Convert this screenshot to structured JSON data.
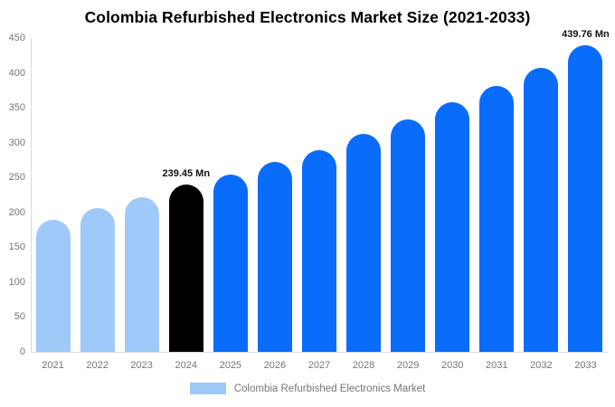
{
  "chart": {
    "title": "Colombia Refurbished Electronics Market Size (2021-2033)"
  },
  "legend": {
    "label": "Colombia Refurbished Electronics Market"
  },
  "chart_data": {
    "type": "bar",
    "title": "Colombia Refurbished Electronics Market Size (2021-2033)",
    "xlabel": "",
    "ylabel": "",
    "unit": "Mn",
    "categories": [
      "2021",
      "2022",
      "2023",
      "2024",
      "2025",
      "2026",
      "2027",
      "2028",
      "2029",
      "2030",
      "2031",
      "2032",
      "2033"
    ],
    "values": [
      190,
      206,
      222,
      239.45,
      254,
      272,
      289,
      312,
      333,
      358,
      381,
      407,
      439.76
    ],
    "bar_roles": [
      "historic",
      "historic",
      "historic",
      "base",
      "forecast",
      "forecast",
      "forecast",
      "forecast",
      "forecast",
      "forecast",
      "forecast",
      "forecast",
      "forecast"
    ],
    "colors": {
      "historic": "#9ec9f8",
      "base": "#000000",
      "forecast": "#0a6cfa",
      "axis_line": "#d9d9d9",
      "tick_text": "#757575",
      "label_text": "#111111"
    },
    "ylim": [
      0,
      450
    ],
    "yticks": [
      0,
      50,
      100,
      150,
      200,
      250,
      300,
      350,
      400,
      450
    ],
    "grid": false,
    "legend_position": "bottom",
    "legend_entries": [
      "Colombia Refurbished Electronics Market"
    ],
    "annotations": [
      {
        "category": "2024",
        "text": "239.45 Mn"
      },
      {
        "category": "2033",
        "text": "439.76 Mn"
      }
    ]
  }
}
